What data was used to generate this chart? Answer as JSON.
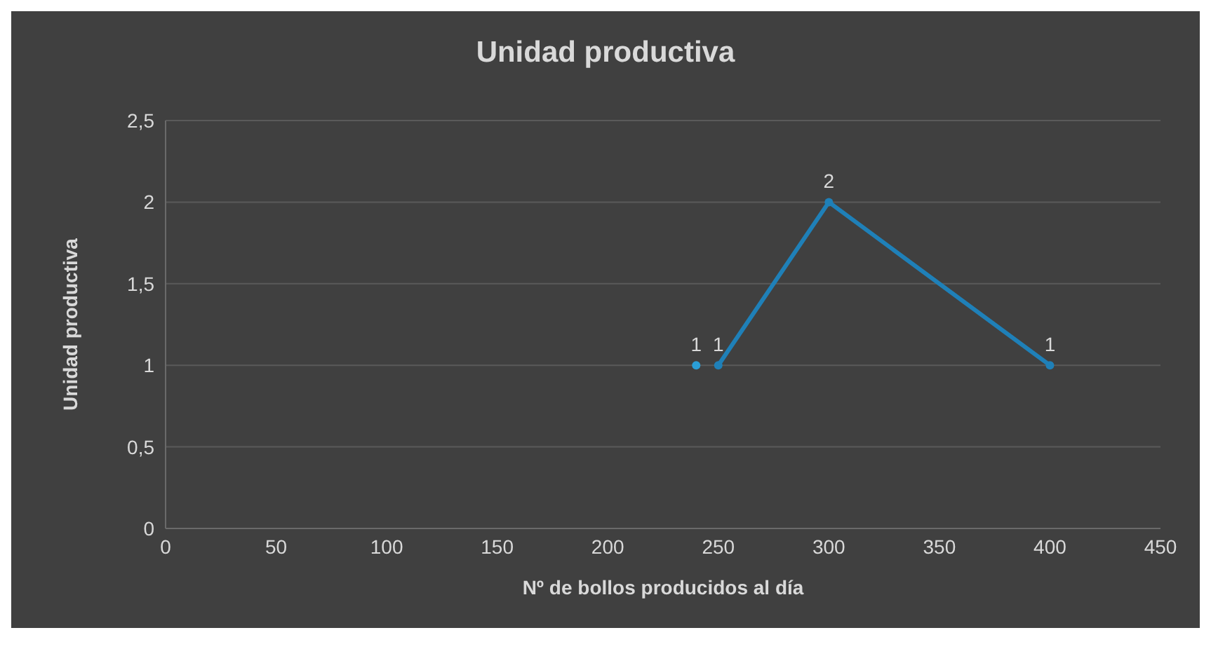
{
  "chart_data": {
    "type": "line",
    "title": "Unidad productiva",
    "xlabel": "Nº de bollos producidos al día",
    "ylabel": "Unidad productiva",
    "series": [
      {
        "type": "scatter",
        "color": "#2a9fd8",
        "x": [
          240
        ],
        "values": [
          1
        ]
      },
      {
        "color": "#1f80b8",
        "x": [
          250,
          300,
          400
        ],
        "values": [
          1,
          2,
          1
        ]
      }
    ],
    "xlim": [
      0,
      450
    ],
    "xticks": [
      0,
      50,
      100,
      150,
      200,
      250,
      300,
      350,
      400,
      450
    ],
    "ylim": [
      0,
      2.5
    ],
    "yticks": [
      0,
      {
        "value": 0.5,
        "label": "0,5"
      },
      1,
      {
        "value": 1.5,
        "label": "1,5"
      },
      2,
      {
        "value": 2.5,
        "label": "2,5"
      }
    ],
    "grid": "y",
    "marker": "circle",
    "data_labels": true
  }
}
